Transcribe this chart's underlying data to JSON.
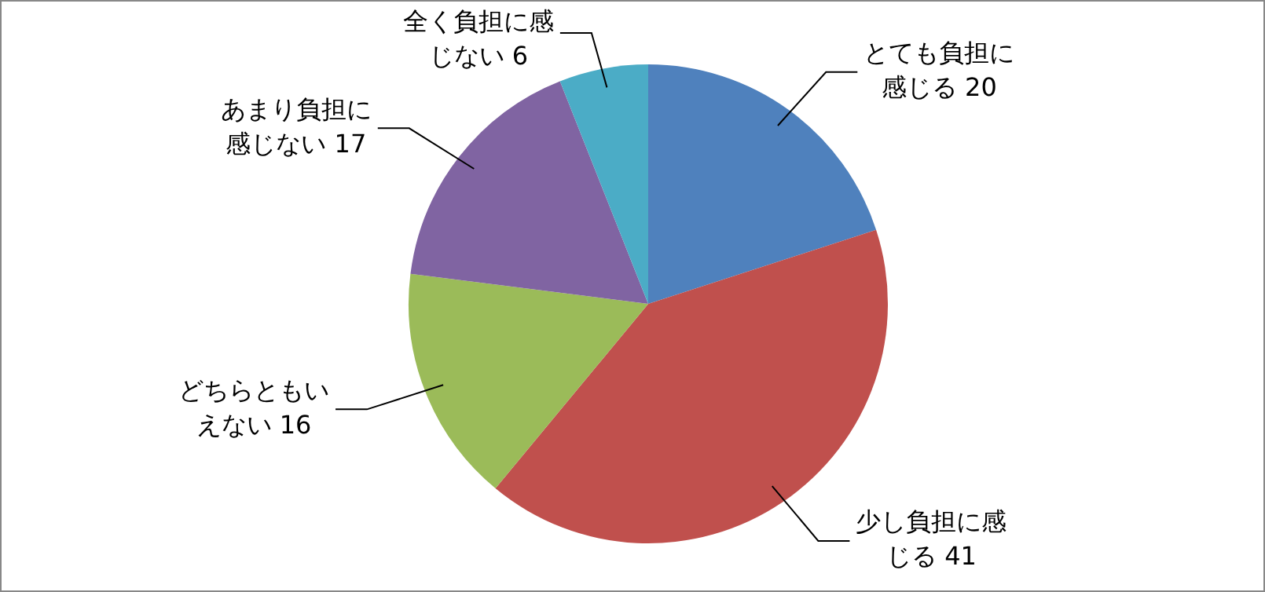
{
  "chart_data": {
    "type": "pie",
    "categories": [
      "とても負担に感じる",
      "少し負担に感じる",
      "どちらともいえない",
      "あまり負担に感じない",
      "全く負担に感じない"
    ],
    "values": [
      20,
      41,
      16,
      17,
      6
    ],
    "colors": [
      "#4f81bd",
      "#c0504d",
      "#9bbb59",
      "#8064a2",
      "#4bacc6"
    ],
    "data_labels": true,
    "legend": false
  }
}
